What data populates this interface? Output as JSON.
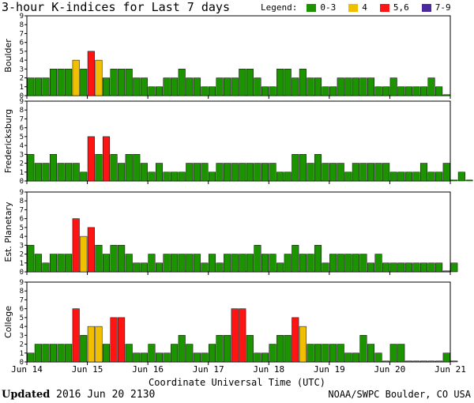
{
  "title": "3-hour K-indices for Last 7 days",
  "legend": {
    "label": "Legend:",
    "items": [
      {
        "text": "0-3",
        "color": "#1c9400"
      },
      {
        "text": "4",
        "color": "#f0c000"
      },
      {
        "text": "5,6",
        "color": "#ff1414"
      },
      {
        "text": "7-9",
        "color": "#4a2a9e"
      }
    ]
  },
  "footer": {
    "updated_label": "Updated",
    "updated_value": "2016 Jun 20 2130",
    "credit": "NOAA/SWPC Boulder, CO USA"
  },
  "chart_data": {
    "type": "bar",
    "xlabel": "Coordinate Universal Time (UTC)",
    "x_tick_labels": [
      "Jun 14",
      "Jun 15",
      "Jun 16",
      "Jun 17",
      "Jun 18",
      "Jun 19",
      "Jun 20",
      "Jun 21"
    ],
    "ylim": [
      0,
      9
    ],
    "y_ticks": [
      0,
      1,
      2,
      3,
      4,
      5,
      6,
      7,
      8,
      9
    ],
    "bins_per_day": 8,
    "color_scale": [
      {
        "range": "0-3",
        "color": "#1c9400"
      },
      {
        "range": "4",
        "color": "#f0c000"
      },
      {
        "range": "5,6",
        "color": "#ff1414"
      },
      {
        "range": "7-9",
        "color": "#4a2a9e"
      }
    ],
    "panels": [
      {
        "name": "Boulder",
        "values": [
          2,
          2,
          2,
          3,
          3,
          3,
          4,
          3,
          5,
          4,
          2,
          3,
          3,
          3,
          2,
          2,
          1,
          1,
          2,
          2,
          3,
          2,
          2,
          1,
          1,
          2,
          2,
          2,
          3,
          3,
          2,
          1,
          1,
          3,
          3,
          2,
          3,
          2,
          2,
          1,
          1,
          2,
          2,
          2,
          2,
          2,
          1,
          1,
          2,
          1,
          1,
          1,
          1,
          2,
          1,
          0
        ]
      },
      {
        "name": "Fredericksburg",
        "values": [
          3,
          2,
          2,
          3,
          2,
          2,
          2,
          1,
          5,
          3,
          5,
          3,
          2,
          3,
          3,
          2,
          1,
          2,
          1,
          1,
          1,
          2,
          2,
          2,
          1,
          2,
          2,
          2,
          2,
          2,
          2,
          2,
          2,
          1,
          1,
          3,
          3,
          2,
          3,
          2,
          2,
          2,
          1,
          2,
          2,
          2,
          2,
          2,
          1,
          1,
          1,
          1,
          2,
          1,
          1,
          2,
          0,
          1,
          0
        ]
      },
      {
        "name": "Est. Planetary",
        "values": [
          3,
          2,
          1,
          2,
          2,
          2,
          6,
          4,
          5,
          3,
          2,
          3,
          3,
          2,
          1,
          1,
          2,
          1,
          2,
          2,
          2,
          2,
          2,
          1,
          2,
          1,
          2,
          2,
          2,
          2,
          3,
          2,
          2,
          1,
          2,
          3,
          2,
          2,
          3,
          1,
          2,
          2,
          2,
          2,
          2,
          1,
          2,
          1,
          1,
          1,
          1,
          1,
          1,
          1,
          1,
          0,
          1
        ]
      },
      {
        "name": "College",
        "values": [
          1,
          2,
          2,
          2,
          2,
          2,
          6,
          3,
          4,
          4,
          2,
          5,
          5,
          2,
          1,
          1,
          2,
          1,
          1,
          2,
          3,
          2,
          1,
          1,
          2,
          3,
          3,
          6,
          6,
          3,
          1,
          1,
          2,
          3,
          3,
          5,
          4,
          2,
          2,
          2,
          2,
          2,
          1,
          1,
          3,
          2,
          1,
          0,
          2,
          2,
          0,
          0,
          0,
          0,
          0,
          1,
          0
        ]
      }
    ]
  }
}
